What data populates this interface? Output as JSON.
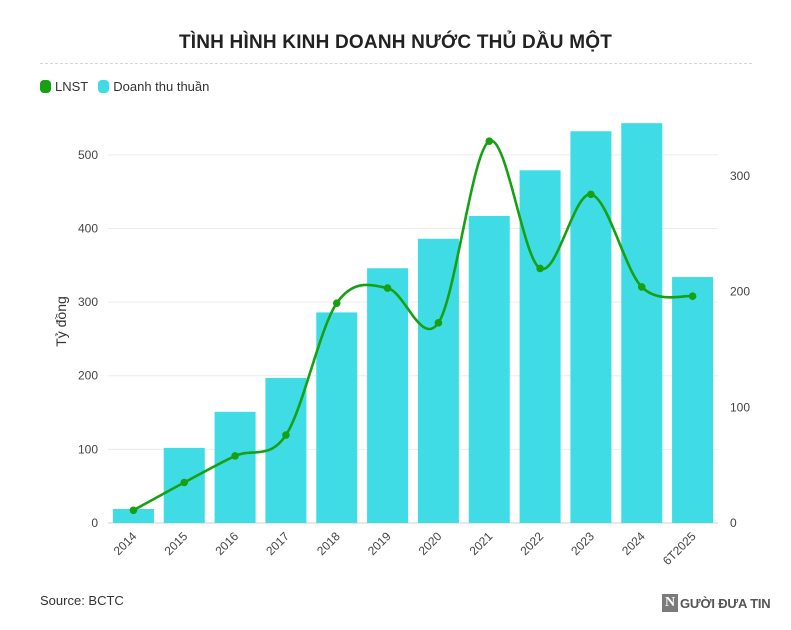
{
  "title": "TÌNH HÌNH KINH DOANH NƯỚC THỦ DẦU MỘT",
  "legend": [
    {
      "label": "LNST",
      "color": "#17a112"
    },
    {
      "label": "Doanh thu thuần",
      "color": "#3fdce6"
    }
  ],
  "source": "Source: BCTC",
  "logo": {
    "mark": "N",
    "text": "GƯỜI ĐƯA TIN"
  },
  "chart_data": {
    "type": "bar",
    "categories": [
      "2014",
      "2015",
      "2016",
      "2017",
      "2018",
      "2019",
      "2020",
      "2021",
      "2022",
      "2023",
      "2024",
      "6T2025"
    ],
    "series": [
      {
        "name": "Doanh thu thuần",
        "type": "bar",
        "axis": "left",
        "color": "#3fdce6",
        "values": [
          19,
          102,
          151,
          197,
          286,
          346,
          386,
          417,
          479,
          532,
          543,
          334
        ]
      },
      {
        "name": "LNST",
        "type": "line",
        "axis": "right",
        "color": "#17a112",
        "values": [
          11,
          35,
          58,
          76,
          190,
          203,
          173,
          330,
          220,
          284,
          204,
          196
        ]
      }
    ],
    "ylabel": "Tỷ đồng",
    "ylim_left": [
      0,
      550
    ],
    "yticks_left": [
      0,
      100,
      200,
      300,
      400,
      500
    ],
    "ylim_right": [
      0,
      350
    ],
    "yticks_right": [
      0,
      100,
      200,
      300
    ],
    "grid": true,
    "legend_position": "top-left"
  }
}
